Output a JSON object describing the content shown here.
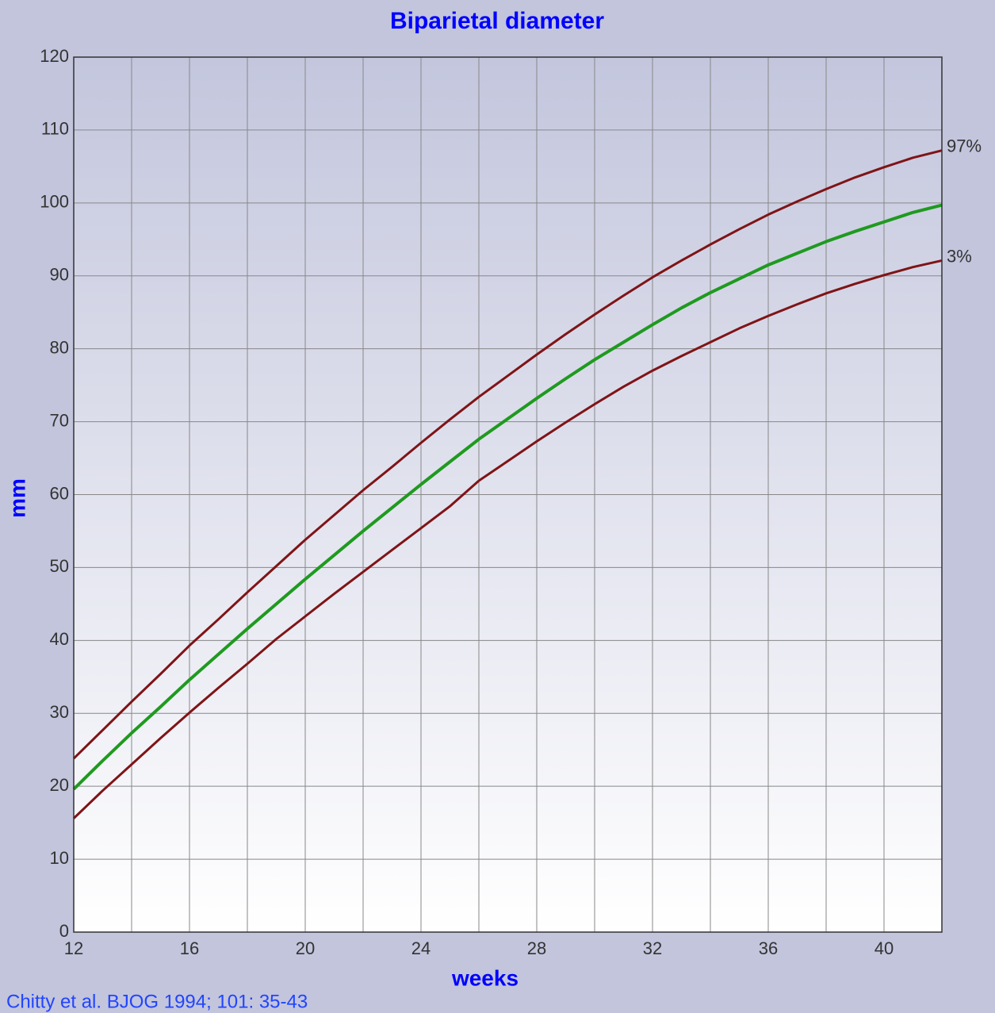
{
  "chart_data": {
    "type": "line",
    "title": "Biparietal diameter",
    "xlabel": "weeks",
    "ylabel": "mm",
    "source": "Chitty et al. BJOG 1994; 101: 35-43",
    "x": [
      12,
      13,
      14,
      15,
      16,
      17,
      18,
      19,
      20,
      21,
      22,
      23,
      24,
      25,
      26,
      27,
      28,
      29,
      30,
      31,
      32,
      33,
      34,
      35,
      36,
      37,
      38,
      39,
      40,
      41,
      42
    ],
    "series": [
      {
        "name": "97%",
        "color": "#7f1416",
        "values": [
          23.8,
          27.7,
          31.6,
          35.4,
          39.3,
          42.9,
          46.6,
          50.2,
          53.8,
          57.2,
          60.6,
          63.8,
          67.1,
          70.3,
          73.4,
          76.3,
          79.2,
          82.0,
          84.7,
          87.3,
          89.8,
          92.1,
          94.3,
          96.4,
          98.4,
          100.2,
          101.9,
          103.5,
          104.9,
          106.2,
          107.2
        ]
      },
      {
        "color": "#1f9a1f",
        "values": [
          19.6,
          23.5,
          27.3,
          30.9,
          34.6,
          38.1,
          41.6,
          45.0,
          48.4,
          51.7,
          55.0,
          58.2,
          61.4,
          64.5,
          67.6,
          70.4,
          73.2,
          75.9,
          78.5,
          80.9,
          83.3,
          85.6,
          87.7,
          89.6,
          91.5,
          93.1,
          94.7,
          96.1,
          97.4,
          98.7,
          99.7
        ]
      },
      {
        "name": "3%",
        "color": "#7f1416",
        "values": [
          15.6,
          19.4,
          23.0,
          26.6,
          30.1,
          33.5,
          36.8,
          40.2,
          43.3,
          46.4,
          49.4,
          52.4,
          55.4,
          58.4,
          61.9,
          64.6,
          67.3,
          69.9,
          72.4,
          74.8,
          77.0,
          79.0,
          80.9,
          82.8,
          84.5,
          86.1,
          87.6,
          88.9,
          90.1,
          91.2,
          92.1
        ]
      }
    ],
    "xlim": [
      12,
      42
    ],
    "xticks": [
      12,
      16,
      20,
      24,
      28,
      32,
      36,
      40
    ],
    "x_minor_ticks": [
      14,
      18,
      22,
      26,
      30,
      34,
      38,
      42
    ],
    "ylim": [
      0,
      120
    ],
    "yticks": [
      0,
      10,
      20,
      30,
      40,
      50,
      60,
      70,
      80,
      90,
      100,
      110,
      120
    ],
    "grid": true
  }
}
